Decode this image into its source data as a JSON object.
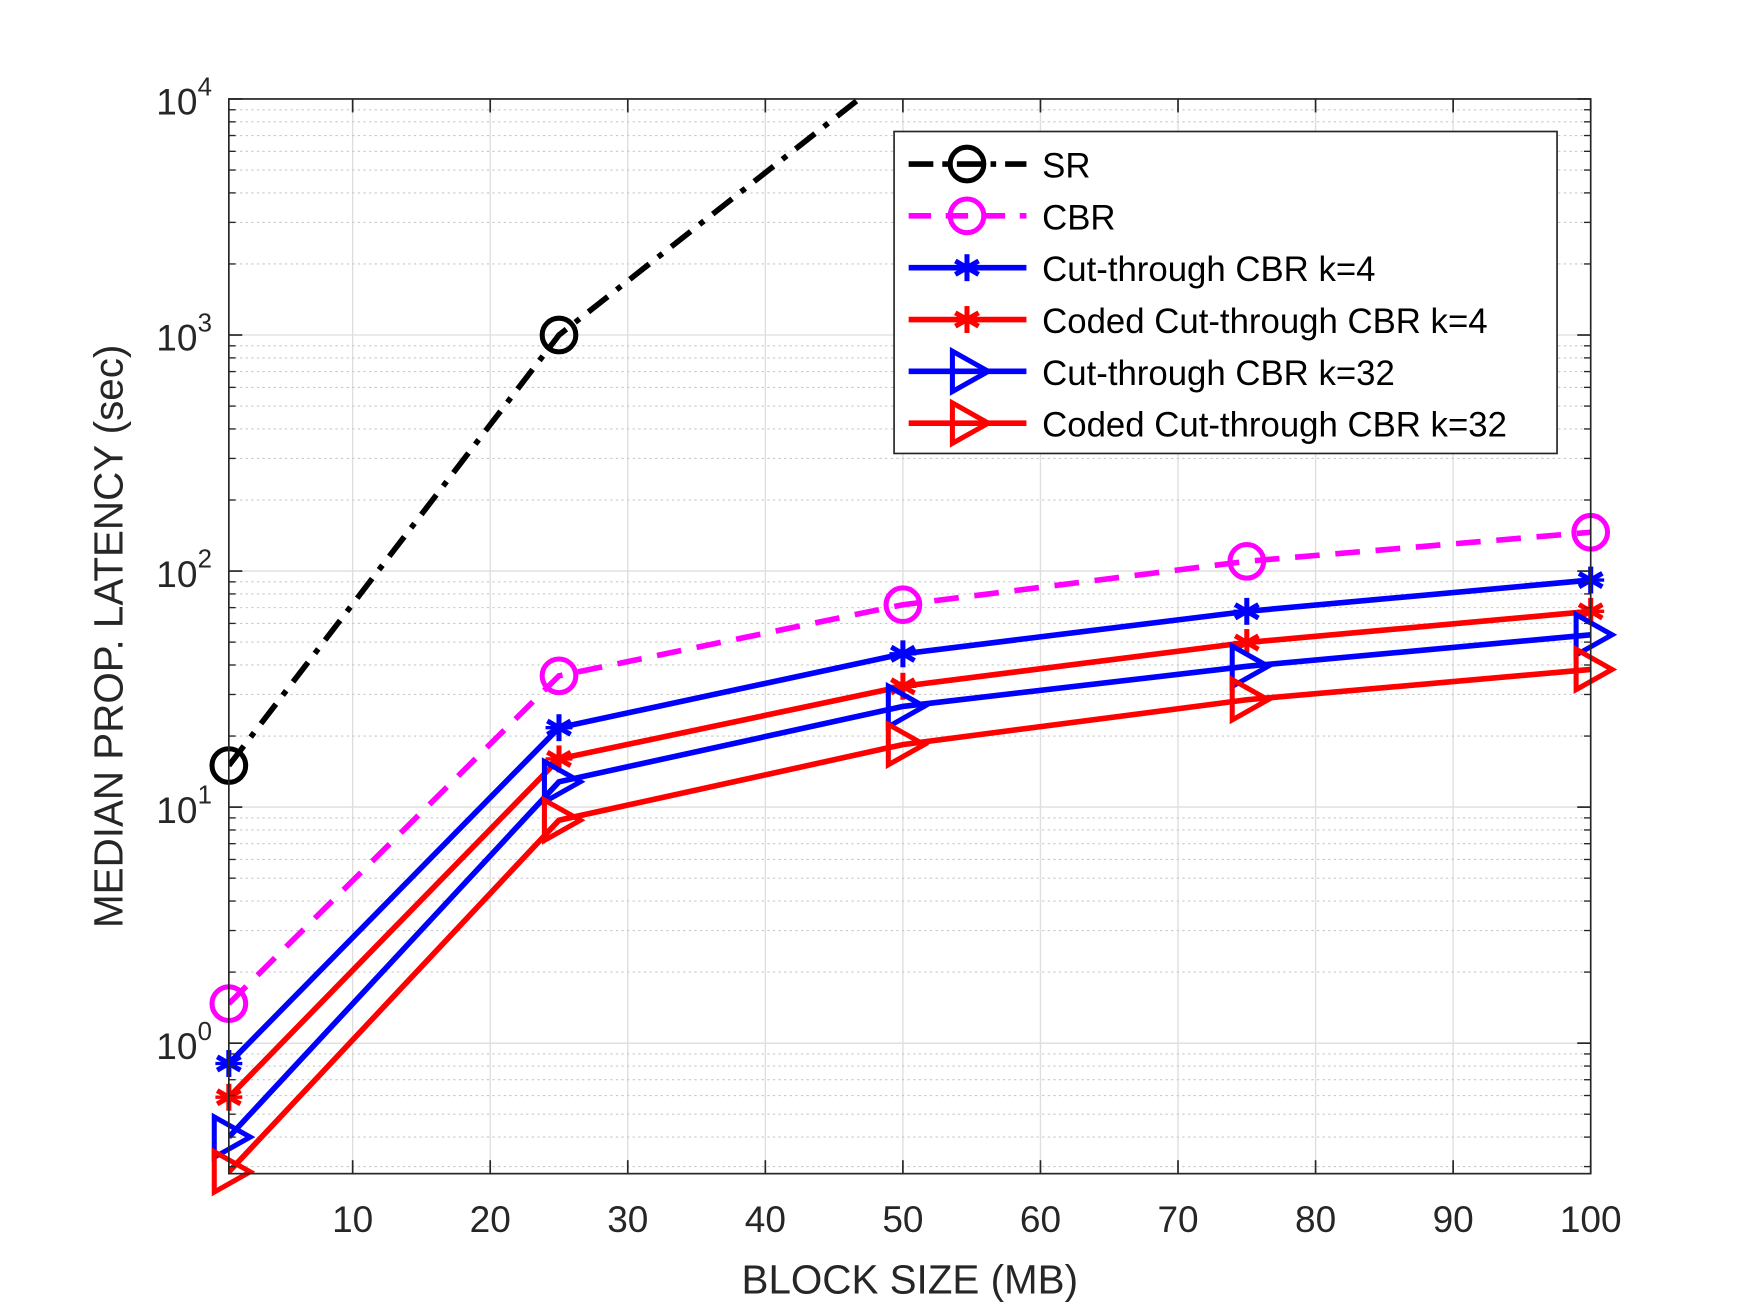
{
  "chart_data": {
    "type": "line",
    "title": "",
    "xlabel": "BLOCK SIZE (MB)",
    "ylabel": "MEDIAN PROP. LATENCY (sec)",
    "xlim": [
      1,
      100
    ],
    "ylim": [
      0.28,
      10000
    ],
    "yscale": "log",
    "grid": true,
    "legend_position": "top-right",
    "xticks": [
      10,
      20,
      30,
      40,
      50,
      60,
      70,
      80,
      90,
      100
    ],
    "yticks": [
      {
        "base": "10",
        "exp": "0"
      },
      {
        "base": "10",
        "exp": "1"
      },
      {
        "base": "10",
        "exp": "2"
      },
      {
        "base": "10",
        "exp": "3"
      },
      {
        "base": "10",
        "exp": "4"
      }
    ],
    "series": [
      {
        "name": "SR",
        "color": "#000000",
        "style": "dashdot",
        "marker": "circle",
        "x": [
          1,
          25,
          50
        ],
        "y": [
          15,
          1000,
          14000
        ]
      },
      {
        "name": "CBR",
        "color": "#ff00ff",
        "style": "dashed",
        "marker": "circle",
        "x": [
          1,
          25,
          50,
          75,
          100
        ],
        "y": [
          1.47,
          36,
          72,
          110,
          146
        ]
      },
      {
        "name": "Cut-through CBR k=4",
        "color": "#0000ff",
        "style": "solid",
        "marker": "asterisk",
        "x": [
          1,
          25,
          50,
          75,
          100
        ],
        "y": [
          0.82,
          21.7,
          44.6,
          67.5,
          91.6
        ]
      },
      {
        "name": "Coded Cut-through CBR k=4",
        "color": "#ff0000",
        "style": "solid",
        "marker": "asterisk",
        "x": [
          1,
          25,
          50,
          75,
          100
        ],
        "y": [
          0.59,
          16,
          32.5,
          49.8,
          67.5
        ]
      },
      {
        "name": "Cut-through CBR k=32",
        "color": "#0000ff",
        "style": "solid",
        "marker": "triangle-right",
        "x": [
          1,
          25,
          50,
          75,
          100
        ],
        "y": [
          0.4,
          12.8,
          26.7,
          39.5,
          53.7
        ]
      },
      {
        "name": "Coded Cut-through CBR k=32",
        "color": "#ff0000",
        "style": "solid",
        "marker": "triangle-right",
        "x": [
          1,
          25,
          50,
          75,
          100
        ],
        "y": [
          0.285,
          8.8,
          18.4,
          28.5,
          38.3
        ]
      }
    ]
  }
}
